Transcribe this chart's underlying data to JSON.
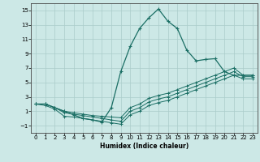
{
  "title": "",
  "xlabel": "Humidex (Indice chaleur)",
  "bg_color": "#cce8e6",
  "grid_color": "#aaccca",
  "line_color": "#1a6e64",
  "xlim": [
    -0.5,
    23.5
  ],
  "ylim": [
    -2,
    16
  ],
  "xticks": [
    0,
    1,
    2,
    3,
    4,
    5,
    6,
    7,
    8,
    9,
    10,
    11,
    12,
    13,
    14,
    15,
    16,
    17,
    18,
    19,
    20,
    21,
    22,
    23
  ],
  "yticks": [
    -1,
    1,
    3,
    5,
    7,
    9,
    11,
    13,
    15
  ],
  "line1_x": [
    0,
    1,
    2,
    3,
    4,
    5,
    6,
    7,
    8,
    9,
    10,
    11,
    12,
    13,
    14,
    15,
    16,
    17,
    18,
    19,
    20,
    21,
    22,
    23
  ],
  "line1_y": [
    2,
    2,
    1.5,
    1.0,
    0.5,
    0.0,
    -0.2,
    -0.5,
    1.5,
    6.5,
    10.0,
    12.5,
    14.0,
    15.2,
    13.5,
    12.5,
    9.5,
    8.0,
    8.2,
    8.3,
    6.5,
    6.0,
    6.0,
    6.0
  ],
  "line2_x": [
    0,
    1,
    2,
    3,
    4,
    5,
    6,
    7,
    8,
    9,
    10,
    11,
    12,
    13,
    14,
    15,
    16,
    17,
    18,
    19,
    20,
    21,
    22,
    23
  ],
  "line2_y": [
    2.0,
    2.0,
    1.5,
    1.0,
    0.8,
    0.6,
    0.4,
    0.3,
    0.2,
    0.1,
    1.5,
    2.0,
    2.8,
    3.2,
    3.5,
    4.0,
    4.5,
    5.0,
    5.5,
    6.0,
    6.5,
    7.0,
    6.0,
    6.0
  ],
  "line3_x": [
    0,
    1,
    2,
    3,
    4,
    5,
    6,
    7,
    8,
    9,
    10,
    11,
    12,
    13,
    14,
    15,
    16,
    17,
    18,
    19,
    20,
    21,
    22,
    23
  ],
  "line3_y": [
    2.0,
    2.0,
    1.5,
    0.8,
    0.6,
    0.4,
    0.2,
    0.0,
    -0.2,
    -0.4,
    1.0,
    1.5,
    2.3,
    2.7,
    3.0,
    3.5,
    4.0,
    4.5,
    5.0,
    5.5,
    6.0,
    6.5,
    5.8,
    5.8
  ],
  "line4_x": [
    0,
    1,
    2,
    3,
    4,
    5,
    6,
    7,
    8,
    9,
    10,
    11,
    12,
    13,
    14,
    15,
    16,
    17,
    18,
    19,
    20,
    21,
    22,
    23
  ],
  "line4_y": [
    2.0,
    1.8,
    1.3,
    0.3,
    0.2,
    0.0,
    -0.2,
    -0.4,
    -0.6,
    -0.8,
    0.5,
    1.0,
    1.8,
    2.2,
    2.5,
    3.0,
    3.5,
    4.0,
    4.5,
    5.0,
    5.5,
    6.0,
    5.5,
    5.5
  ]
}
